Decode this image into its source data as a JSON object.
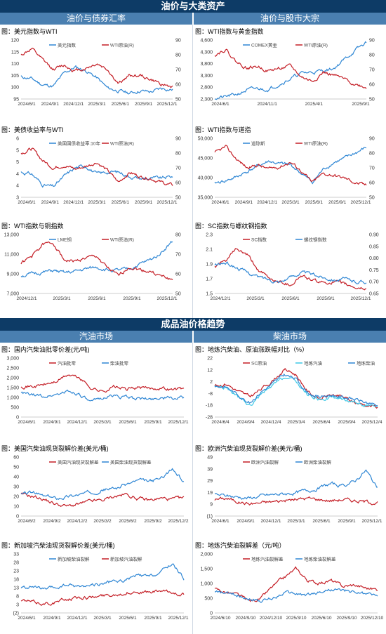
{
  "banners": {
    "top": "油价与大类资产",
    "bottom": "成品油价格趋势"
  },
  "sections": {
    "s1_left": "油价与债券汇率",
    "s1_right": "油价与股市大宗",
    "s2_left": "汽油市场",
    "s2_right": "柴油市场"
  },
  "colors": {
    "blue": "#2e86d4",
    "red": "#c41e26",
    "cyan": "#3cc8e6",
    "navy_bar": "#0d3b66"
  },
  "panels": [
    {
      "title": "图：美元指数与WTI",
      "chart_data": {
        "type": "line",
        "x_labels": [
          "2024/6/1",
          "2024/9/1",
          "2024/12/1",
          "2025/3/1",
          "2025/6/1",
          "2025/9/1",
          "2025/12/1"
        ],
        "left_ticks": [
          "95",
          "100",
          "105",
          "110",
          "115",
          "120"
        ],
        "ylim": [
          95,
          120
        ],
        "right_ticks": [
          "50",
          "60",
          "70",
          "80",
          "90"
        ],
        "y2lim": [
          50,
          90
        ],
        "series": [
          {
            "name": "美元指数",
            "color": "#2e86d4",
            "axis": "left",
            "seed": 11,
            "anchors": [
              104.5,
              103.5,
              101,
              100.5,
              106,
              108.5,
              107,
              104,
              99.5,
              98.5,
              97.5,
              98.5,
              98,
              99.5,
              99
            ]
          },
          {
            "name": "WTI原油(R)",
            "color": "#c41e26",
            "axis": "right",
            "seed": 12,
            "anchors": [
              80,
              84,
              76,
              70,
              73,
              69,
              71,
              74,
              70,
              60,
              66,
              66,
              63,
              60,
              58
            ]
          }
        ]
      }
    },
    {
      "title": "图：WTI指数与黄金指数",
      "chart_data": {
        "type": "line",
        "x_labels": [
          "2024/6/1",
          "2024/11/1",
          "2025/4/1",
          "2025/9/1"
        ],
        "left_ticks": [
          "2,300",
          "2,800",
          "3,300",
          "3,800",
          "4,300",
          "4,600"
        ],
        "ylim": [
          2300,
          4600
        ],
        "right_ticks": [
          "50",
          "60",
          "70",
          "80",
          "90"
        ],
        "y2lim": [
          50,
          90
        ],
        "series": [
          {
            "name": "COMEX黄金",
            "color": "#2e86d4",
            "axis": "left",
            "seed": 21,
            "anchors": [
              2330,
              2380,
              2480,
              2650,
              2700,
              2680,
              2900,
              3100,
              3300,
              3350,
              3400,
              3500,
              3850,
              4200,
              4500
            ]
          },
          {
            "name": "WTI原油(R)",
            "color": "#c41e26",
            "axis": "right",
            "seed": 22,
            "anchors": [
              80,
              84,
              75,
              71,
              72,
              69,
              71,
              72,
              65,
              62,
              68,
              66,
              63,
              60,
              58
            ]
          }
        ]
      }
    },
    {
      "title": "图：美债收益率与WTI",
      "chart_data": {
        "type": "line",
        "x_labels": [
          "2024/6/1",
          "2024/9/1",
          "2024/12/1",
          "2025/3/1",
          "2025/6/1",
          "2025/9/1",
          "2025/12/1"
        ],
        "left_ticks": [
          "3",
          "4",
          "4",
          "5",
          "5",
          "6"
        ],
        "ylim": [
          3.2,
          6.0
        ],
        "right_ticks": [
          "50",
          "60",
          "70",
          "80",
          "90"
        ],
        "y2lim": [
          50,
          90
        ],
        "series": [
          {
            "name": "美国国债收益率:10年",
            "color": "#2e86d4",
            "axis": "left",
            "seed": 31,
            "anchors": [
              4.4,
              4.3,
              3.8,
              3.7,
              4.2,
              4.6,
              4.7,
              4.3,
              4.4,
              4.4,
              4.2,
              4.1,
              4.1,
              4.1,
              4.2
            ]
          },
          {
            "name": "WTI原油(R)",
            "color": "#c41e26",
            "axis": "right",
            "seed": 32,
            "anchors": [
              80,
              83,
              75,
              70,
              72,
              69,
              71,
              74,
              68,
              60,
              67,
              64,
              63,
              60,
              58
            ]
          }
        ]
      }
    },
    {
      "title": "图：WTI指数与道指",
      "chart_data": {
        "type": "line",
        "x_labels": [
          "2024/6/1",
          "2024/9/1",
          "2024/12/1",
          "2025/3/1",
          "2025/6/1",
          "2025/9/1",
          "2025/12/1"
        ],
        "left_ticks": [
          "35,000",
          "40,000",
          "45,000",
          "50,000"
        ],
        "ylim": [
          35000,
          51000
        ],
        "right_ticks": [
          "50",
          "60",
          "70",
          "80",
          "90"
        ],
        "y2lim": [
          50,
          90
        ],
        "series": [
          {
            "name": "道琼斯",
            "color": "#2e86d4",
            "axis": "left",
            "seed": 41,
            "anchors": [
              38800,
              39500,
              40500,
              42000,
              43500,
              44800,
              44000,
              43800,
              41500,
              39000,
              42500,
              44500,
              45500,
              47000,
              48500
            ]
          },
          {
            "name": "WTI原油(R)",
            "color": "#c41e26",
            "axis": "right",
            "seed": 42,
            "anchors": [
              80,
              84,
              76,
              70,
              72,
              69,
              71,
              74,
              68,
              60,
              66,
              65,
              63,
              60,
              58
            ]
          }
        ]
      }
    },
    {
      "title": "图：WTI指数与铜指数",
      "chart_data": {
        "type": "line",
        "x_labels": [
          "2024/12/1",
          "2025/3/1",
          "2025/6/1",
          "2025/9/1",
          "2025/12/1"
        ],
        "left_ticks": [
          "7,000",
          "9,000",
          "11,000",
          "13,000"
        ],
        "ylim": [
          7000,
          14000
        ],
        "right_ticks": [
          "50",
          "60",
          "70",
          "80"
        ],
        "y2lim": [
          50,
          85
        ],
        "series": [
          {
            "name": "LME铜",
            "color": "#2e86d4",
            "axis": "left",
            "seed": 51,
            "anchors": [
              9100,
              9300,
              9500,
              9700,
              9400,
              9600,
              9900,
              10100,
              9800,
              9700,
              9900,
              10500,
              11000,
              12000,
              13200
            ]
          },
          {
            "name": "WTI原油(R)",
            "color": "#c41e26",
            "axis": "right",
            "seed": 52,
            "anchors": [
              68,
              72,
              79,
              80,
              70,
              69,
              71,
              72,
              65,
              60,
              66,
              64,
              63,
              60,
              58
            ]
          }
        ]
      }
    },
    {
      "title": "图：SC指数与螺纹钢指数",
      "chart_data": {
        "type": "line",
        "x_labels": [
          "2024/12/1",
          "2025/3/1",
          "2025/6/1",
          "2025/9/1",
          "2025/12/1"
        ],
        "left_ticks": [
          "1.5",
          "1.7",
          "1.9",
          "2.1",
          "2.3"
        ],
        "ylim": [
          1.4,
          2.4
        ],
        "right_ticks": [
          "0.65",
          "0.70",
          "0.75",
          "0.80",
          "0.85",
          "0.90"
        ],
        "y2lim": [
          0.65,
          0.9
        ],
        "series": [
          {
            "name": "SC指数",
            "color": "#c41e26",
            "axis": "left",
            "seed": 61,
            "anchors": [
              1.85,
              1.95,
              2.15,
              2.05,
              1.8,
              1.65,
              1.6,
              1.55,
              1.7,
              1.62,
              1.58,
              1.6,
              1.55,
              1.5,
              1.48
            ]
          },
          {
            "name": "螺纹钢指数",
            "color": "#2e86d4",
            "axis": "right",
            "seed": 62,
            "anchors": [
              0.77,
              0.78,
              0.76,
              0.74,
              0.72,
              0.71,
              0.7,
              0.72,
              0.74,
              0.73,
              0.72,
              0.71,
              0.71,
              0.7,
              0.7
            ]
          }
        ]
      }
    },
    {
      "title": "图：国内汽柴油批零价差(元/吨)",
      "chart_data": {
        "type": "line",
        "x_labels": [
          "2024/6/1",
          "2024/9/1",
          "2024/12/1",
          "2025/3/1",
          "2025/6/1",
          "2025/9/1",
          "2025/12/1"
        ],
        "left_ticks": [
          "0",
          "500",
          "1,000",
          "1,500",
          "2,000",
          "2,500",
          "3,000"
        ],
        "ylim": [
          0,
          3000
        ],
        "series": [
          {
            "name": "汽油批零",
            "color": "#c41e26",
            "axis": "left",
            "seed": 71,
            "anchors": [
              1600,
              1550,
              1650,
              1800,
              2150,
              2000,
              1500,
              1300,
              1550,
              1400,
              1500,
              1450,
              1500,
              1400,
              1450
            ]
          },
          {
            "name": "柴油批零",
            "color": "#2e86d4",
            "axis": "left",
            "seed": 72,
            "anchors": [
              1200,
              1100,
              1050,
              1150,
              1300,
              1200,
              700,
              1000,
              1100,
              1000,
              950,
              900,
              1000,
              950,
              1000
            ]
          }
        ]
      }
    },
    {
      "title": "图：地炼汽柴油、原油涨跌幅对比（%）",
      "chart_data": {
        "type": "line",
        "x_labels": [
          "2024/6/4",
          "2024/9/4",
          "2024/12/4",
          "2025/3/4",
          "2025/6/4",
          "2025/9/4",
          "2025/12/4"
        ],
        "left_ticks": [
          "-28",
          "-18",
          "-8",
          "2",
          "12",
          "22"
        ],
        "ylim": [
          -28,
          25
        ],
        "series": [
          {
            "name": "SC原油",
            "color": "#c41e26",
            "axis": "left",
            "seed": 81,
            "anchors": [
              0,
              2,
              -5,
              -10,
              -3,
              5,
              15,
              10,
              -5,
              -12,
              -8,
              -10,
              -15,
              -17,
              -19
            ]
          },
          {
            "name": "地炼汽油",
            "color": "#3cc8e6",
            "axis": "left",
            "seed": 82,
            "anchors": [
              0,
              -2,
              -10,
              -18,
              -8,
              0,
              8,
              4,
              -8,
              -12,
              -10,
              -12,
              -14,
              -18,
              -20
            ]
          },
          {
            "name": "地炼柴油",
            "color": "#2e86d4",
            "axis": "left",
            "seed": 83,
            "anchors": [
              0,
              -1,
              -8,
              -15,
              -5,
              2,
              10,
              6,
              -6,
              -10,
              -8,
              -10,
              -12,
              -15,
              -18
            ]
          }
        ]
      }
    },
    {
      "title": "图：美国汽柴油现货裂解价差(美元/桶)",
      "chart_data": {
        "type": "line",
        "x_labels": [
          "2024/6/2",
          "2024/9/2",
          "2024/12/2",
          "2025/3/2",
          "2025/6/2",
          "2025/9/2",
          "2025/12/2"
        ],
        "left_ticks": [
          "0",
          "10",
          "20",
          "30",
          "40",
          "50",
          "60"
        ],
        "ylim": [
          0,
          60
        ],
        "series": [
          {
            "name": "美国汽油现货裂解差",
            "color": "#c41e26",
            "axis": "left",
            "seed": 91,
            "anchors": [
              22,
              20,
              17,
              12,
              10,
              12,
              15,
              16,
              20,
              22,
              18,
              16,
              18,
              17,
              18
            ]
          },
          {
            "name": "美国柴油现货裂解差",
            "color": "#2e86d4",
            "axis": "left",
            "seed": 92,
            "anchors": [
              22,
              24,
              20,
              18,
              20,
              22,
              24,
              27,
              28,
              32,
              36,
              35,
              38,
              48,
              35
            ]
          }
        ]
      }
    },
    {
      "title": "图：欧洲汽柴油现货裂解价差(美元/桶)",
      "chart_data": {
        "type": "line",
        "x_labels": [
          "2024/6/1",
          "2024/9/1",
          "2024/12/1",
          "2025/3/1",
          "2025/6/1",
          "2025/9/1",
          "2025/12/1"
        ],
        "left_ticks": [
          "(1)",
          "9",
          "19",
          "29",
          "39",
          "49"
        ],
        "ylim": [
          -1,
          52
        ],
        "series": [
          {
            "name": "欧洲汽油裂解",
            "color": "#c41e26",
            "axis": "left",
            "seed": 101,
            "anchors": [
              14,
              15,
              12,
              10,
              11,
              12,
              13,
              14,
              15,
              14,
              13,
              14,
              13,
              12,
              11
            ]
          },
          {
            "name": "欧洲柴油裂解",
            "color": "#2e86d4",
            "axis": "left",
            "seed": 102,
            "anchors": [
              18,
              17,
              16,
              15,
              17,
              18,
              19,
              20,
              22,
              24,
              28,
              26,
              30,
              40,
              24
            ]
          }
        ]
      }
    },
    {
      "title": "图：新加坡汽柴油现货裂解价差(美元/桶)",
      "chart_data": {
        "type": "line",
        "x_labels": [
          "2024/6/1",
          "2024/9/1",
          "2024/12/1",
          "2025/3/1",
          "2025/6/1",
          "2025/9/1",
          "2025/12/1"
        ],
        "left_ticks": [
          "(2)",
          "3",
          "8",
          "13",
          "18",
          "23",
          "28",
          "33"
        ],
        "ylim": [
          -2,
          36
        ],
        "series": [
          {
            "name": "新加坡柴油裂解",
            "color": "#2e86d4",
            "axis": "left",
            "seed": 111,
            "anchors": [
              14,
              15,
              13,
              14,
              16,
              15,
              16,
              17,
              18,
              19,
              22,
              21,
              24,
              30,
              20
            ]
          },
          {
            "name": "新加坡汽油裂解",
            "color": "#c41e26",
            "axis": "left",
            "seed": 112,
            "anchors": [
              6,
              5,
              4,
              5,
              7,
              8,
              8,
              9,
              10,
              11,
              12,
              11,
              12,
              11,
              10
            ]
          }
        ]
      }
    },
    {
      "title": "图：地炼汽柴油裂解差（元/吨）",
      "chart_data": {
        "type": "line",
        "x_labels": [
          "2024/6/10",
          "2024/9/10",
          "2024/12/10",
          "2025/3/10",
          "2025/6/10",
          "2025/9/10",
          "2025/12/10"
        ],
        "left_ticks": [
          "0",
          "500",
          "1,000",
          "1,500",
          "2,000"
        ],
        "ylim": [
          0,
          2000
        ],
        "series": [
          {
            "name": "地炼汽油裂解差",
            "color": "#c41e26",
            "axis": "left",
            "seed": 121,
            "anchors": [
              800,
              700,
              600,
              400,
              500,
              900,
              1200,
              1500,
              1100,
              1000,
              1100,
              900,
              950,
              850,
              800
            ]
          },
          {
            "name": "地炼柴油裂解差",
            "color": "#2e86d4",
            "axis": "left",
            "seed": 122,
            "anchors": [
              700,
              650,
              600,
              500,
              400,
              500,
              700,
              650,
              600,
              700,
              800,
              750,
              700,
              650,
              600
            ]
          }
        ]
      }
    }
  ]
}
